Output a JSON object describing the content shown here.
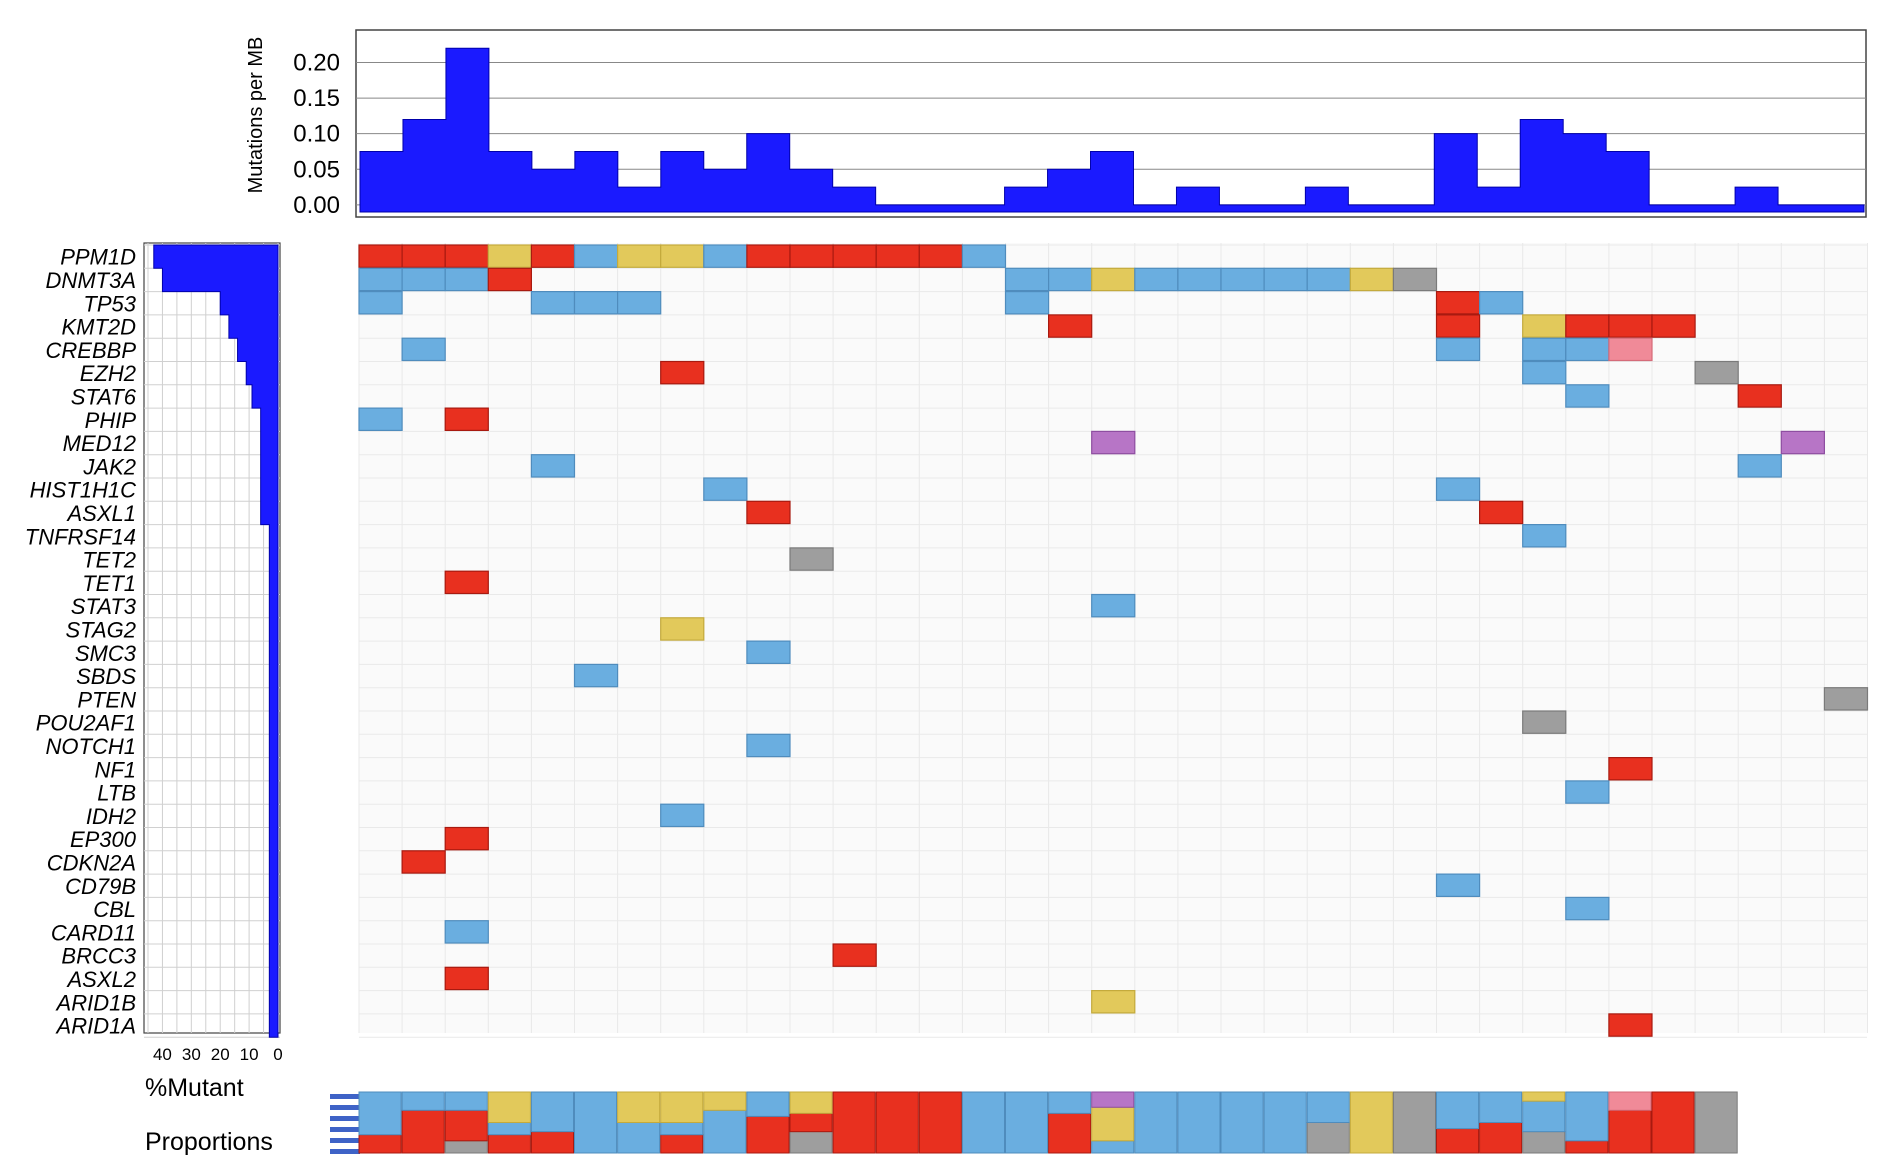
{
  "colors": {
    "bar": "#1a1aff",
    "red": "#e8301f",
    "blue": "#6aaee0",
    "yellow": "#e2c95b",
    "gray": "#9e9e9e",
    "pink": "#f08a98",
    "purple": "#b775c6",
    "grid": "#e9e9e9"
  },
  "chart_data": [
    {
      "type": "bar",
      "panel": "mutation-burden",
      "ylabel": "Mutations per MB",
      "yticks": [
        "0.20",
        "0.15",
        "0.10",
        "0.05",
        "0.00"
      ],
      "ytick_values": [
        0.2,
        0.15,
        0.1,
        0.05,
        0.0
      ],
      "ylim": [
        -0.01,
        0.24
      ],
      "values": [
        0.075,
        0.12,
        0.22,
        0.075,
        0.05,
        0.075,
        0.025,
        0.075,
        0.05,
        0.1,
        0.05,
        0.025,
        0.0,
        0.0,
        0.0,
        0.025,
        0.05,
        0.075,
        0.0,
        0.025,
        0.0,
        0.0,
        0.025,
        0.0,
        0.0,
        0.1,
        0.025,
        0.12,
        0.1,
        0.075,
        0.0,
        0.0,
        0.025,
        0.0,
        0.0
      ]
    },
    {
      "type": "bar",
      "panel": "percent-mutant",
      "orientation": "horizontal",
      "xlabel": "%Mutant",
      "xticks": [
        "40",
        "30",
        "20",
        "10",
        "0"
      ],
      "xtick_values": [
        40,
        30,
        20,
        10,
        0
      ],
      "xlim": [
        0,
        45
      ],
      "genes": [
        "PPM1D",
        "DNMT3A",
        "TP53",
        "KMT2D",
        "CREBBP",
        "EZH2",
        "STAT6",
        "PHIP",
        "MED12",
        "JAK2",
        "HIST1H1C",
        "ASXL1",
        "TNFRSF14",
        "TET2",
        "TET1",
        "STAT3",
        "STAG2",
        "SMC3",
        "SBDS",
        "PTEN",
        "POU2AF1",
        "NOTCH1",
        "NF1",
        "LTB",
        "IDH2",
        "EP300",
        "CDKN2A",
        "CD79B",
        "CBL",
        "CARD11",
        "BRCC3",
        "ASXL2",
        "ARID1B",
        "ARID1A"
      ],
      "values": [
        43,
        40,
        20,
        17,
        14,
        11,
        9,
        6,
        6,
        6,
        6,
        6,
        3,
        3,
        3,
        3,
        3,
        3,
        3,
        3,
        3,
        3,
        3,
        3,
        3,
        3,
        3,
        3,
        3,
        3,
        3,
        3,
        3,
        3
      ]
    },
    {
      "type": "heatmap",
      "panel": "oncoprint",
      "n_samples": 35,
      "genes": [
        "PPM1D",
        "DNMT3A",
        "TP53",
        "KMT2D",
        "CREBBP",
        "EZH2",
        "STAT6",
        "PHIP",
        "MED12",
        "JAK2",
        "HIST1H1C",
        "ASXL1",
        "TNFRSF14",
        "TET2",
        "TET1",
        "STAT3",
        "STAG2",
        "SMC3",
        "SBDS",
        "PTEN",
        "POU2AF1",
        "NOTCH1",
        "NF1",
        "LTB",
        "IDH2",
        "EP300",
        "CDKN2A",
        "CD79B",
        "CBL",
        "CARD11",
        "BRCC3",
        "ASXL2",
        "ARID1B",
        "ARID1A"
      ],
      "cells": [
        [
          0,
          0,
          "red"
        ],
        [
          0,
          1,
          "red"
        ],
        [
          0,
          2,
          "red"
        ],
        [
          0,
          3,
          "yellow"
        ],
        [
          0,
          4,
          "red"
        ],
        [
          0,
          5,
          "blue"
        ],
        [
          0,
          6,
          "yellow"
        ],
        [
          0,
          7,
          "yellow"
        ],
        [
          0,
          8,
          "blue"
        ],
        [
          0,
          9,
          "red"
        ],
        [
          0,
          10,
          "red"
        ],
        [
          0,
          11,
          "red"
        ],
        [
          0,
          12,
          "red"
        ],
        [
          0,
          13,
          "red"
        ],
        [
          0,
          14,
          "blue"
        ],
        [
          1,
          0,
          "blue"
        ],
        [
          1,
          1,
          "blue"
        ],
        [
          1,
          2,
          "blue"
        ],
        [
          1,
          3,
          "red"
        ],
        [
          1,
          15,
          "blue"
        ],
        [
          1,
          16,
          "blue"
        ],
        [
          1,
          17,
          "yellow"
        ],
        [
          1,
          18,
          "blue"
        ],
        [
          1,
          19,
          "blue"
        ],
        [
          1,
          20,
          "blue"
        ],
        [
          1,
          21,
          "blue"
        ],
        [
          1,
          22,
          "blue"
        ],
        [
          1,
          23,
          "yellow"
        ],
        [
          1,
          24,
          "gray"
        ],
        [
          2,
          0,
          "blue"
        ],
        [
          2,
          4,
          "blue"
        ],
        [
          2,
          5,
          "blue"
        ],
        [
          2,
          6,
          "blue"
        ],
        [
          2,
          15,
          "blue"
        ],
        [
          2,
          25,
          "red"
        ],
        [
          2,
          26,
          "blue"
        ],
        [
          3,
          16,
          "red"
        ],
        [
          3,
          25,
          "red"
        ],
        [
          3,
          27,
          "yellow"
        ],
        [
          3,
          28,
          "red"
        ],
        [
          3,
          29,
          "red"
        ],
        [
          3,
          30,
          "red"
        ],
        [
          4,
          1,
          "blue"
        ],
        [
          4,
          25,
          "blue"
        ],
        [
          4,
          27,
          "blue"
        ],
        [
          4,
          28,
          "blue"
        ],
        [
          4,
          29,
          "pink"
        ],
        [
          5,
          7,
          "red"
        ],
        [
          5,
          27,
          "blue"
        ],
        [
          5,
          31,
          "gray"
        ],
        [
          6,
          28,
          "blue"
        ],
        [
          6,
          32,
          "red"
        ],
        [
          7,
          0,
          "blue"
        ],
        [
          7,
          2,
          "red"
        ],
        [
          8,
          17,
          "purple"
        ],
        [
          8,
          33,
          "purple"
        ],
        [
          9,
          4,
          "blue"
        ],
        [
          9,
          32,
          "blue"
        ],
        [
          10,
          8,
          "blue"
        ],
        [
          10,
          25,
          "blue"
        ],
        [
          11,
          9,
          "red"
        ],
        [
          11,
          26,
          "red"
        ],
        [
          12,
          27,
          "blue"
        ],
        [
          13,
          10,
          "gray"
        ],
        [
          14,
          2,
          "red"
        ],
        [
          15,
          17,
          "blue"
        ],
        [
          16,
          7,
          "yellow"
        ],
        [
          17,
          9,
          "blue"
        ],
        [
          18,
          5,
          "blue"
        ],
        [
          19,
          34,
          "gray"
        ],
        [
          20,
          27,
          "gray"
        ],
        [
          21,
          9,
          "blue"
        ],
        [
          22,
          29,
          "red"
        ],
        [
          23,
          28,
          "blue"
        ],
        [
          24,
          7,
          "blue"
        ],
        [
          25,
          2,
          "red"
        ],
        [
          26,
          1,
          "red"
        ],
        [
          27,
          25,
          "blue"
        ],
        [
          28,
          28,
          "blue"
        ],
        [
          29,
          2,
          "blue"
        ],
        [
          30,
          11,
          "red"
        ],
        [
          31,
          2,
          "red"
        ],
        [
          32,
          17,
          "yellow"
        ],
        [
          33,
          29,
          "red"
        ]
      ]
    },
    {
      "type": "bar",
      "panel": "proportions",
      "stacked": true,
      "label": "Proportions",
      "columns": [
        [
          [
            "red",
            0.3
          ],
          [
            "blue",
            0.7
          ]
        ],
        [
          [
            "red",
            0.7
          ],
          [
            "blue",
            0.3
          ]
        ],
        [
          [
            "gray",
            0.2
          ],
          [
            "red",
            0.5
          ],
          [
            "blue",
            0.3
          ]
        ],
        [
          [
            "red",
            0.3
          ],
          [
            "blue",
            0.2
          ],
          [
            "yellow",
            0.5
          ]
        ],
        [
          [
            "red",
            0.35
          ],
          [
            "blue",
            0.65
          ]
        ],
        [
          [
            "blue",
            1.0
          ]
        ],
        [
          [
            "blue",
            0.5
          ],
          [
            "yellow",
            0.5
          ]
        ],
        [
          [
            "red",
            0.3
          ],
          [
            "blue",
            0.2
          ],
          [
            "yellow",
            0.5
          ]
        ],
        [
          [
            "blue",
            0.7
          ],
          [
            "yellow",
            0.3
          ]
        ],
        [
          [
            "red",
            0.6
          ],
          [
            "blue",
            0.4
          ]
        ],
        [
          [
            "gray",
            0.35
          ],
          [
            "red",
            0.3
          ],
          [
            "yellow",
            0.35
          ]
        ],
        [
          [
            "red",
            1.0
          ]
        ],
        [
          [
            "red",
            1.0
          ]
        ],
        [
          [
            "red",
            1.0
          ]
        ],
        [
          [
            "blue",
            1.0
          ]
        ],
        [
          [
            "blue",
            1.0
          ]
        ],
        [
          [
            "red",
            0.65
          ],
          [
            "blue",
            0.35
          ]
        ],
        [
          [
            "blue",
            0.2
          ],
          [
            "yellow",
            0.55
          ],
          [
            "purple",
            0.25
          ]
        ],
        [
          [
            "blue",
            1.0
          ]
        ],
        [
          [
            "blue",
            1.0
          ]
        ],
        [
          [
            "blue",
            1.0
          ]
        ],
        [
          [
            "blue",
            1.0
          ]
        ],
        [
          [
            "gray",
            0.5
          ],
          [
            "blue",
            0.5
          ]
        ],
        [
          [
            "yellow",
            1.0
          ]
        ],
        [
          [
            "gray",
            1.0
          ]
        ],
        [
          [
            "red",
            0.4
          ],
          [
            "blue",
            0.6
          ]
        ],
        [
          [
            "red",
            0.5
          ],
          [
            "blue",
            0.5
          ]
        ],
        [
          [
            "gray",
            0.35
          ],
          [
            "blue",
            0.5
          ],
          [
            "yellow",
            0.15
          ]
        ],
        [
          [
            "red",
            0.2
          ],
          [
            "blue",
            0.8
          ]
        ],
        [
          [
            "red",
            0.7
          ],
          [
            "pink",
            0.3
          ]
        ],
        [
          [
            "red",
            1.0
          ]
        ],
        [
          [
            "gray",
            1.0
          ]
        ]
      ]
    }
  ]
}
